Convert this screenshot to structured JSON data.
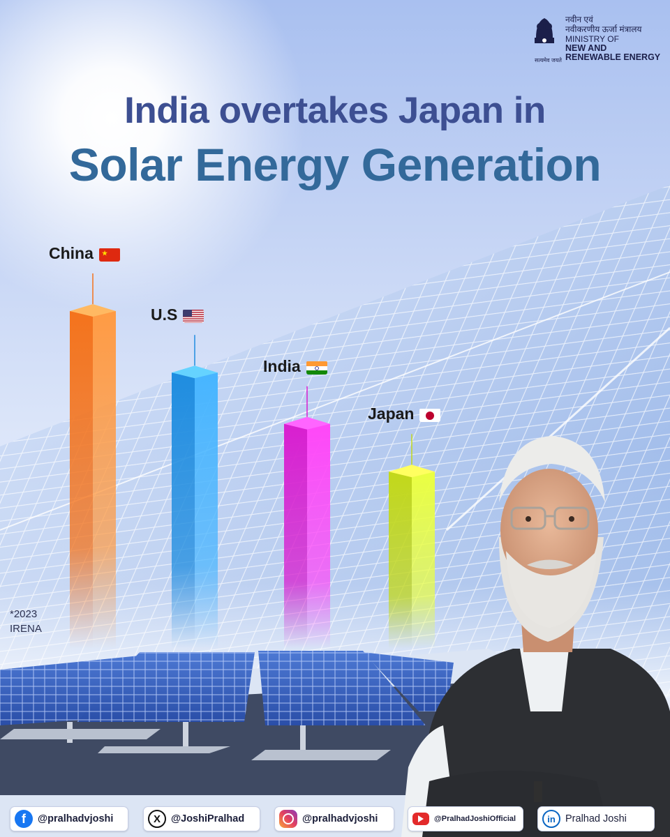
{
  "ministry": {
    "hindi_line1": "नवीन एवं",
    "hindi_line2": "नवीकरणीय ऊर्जा मंत्रालय",
    "english_line1": "MINISTRY OF",
    "english_line2": "NEW AND",
    "english_line3": "RENEWABLE ENERGY",
    "emblem_motto": "सत्यमेव जयते",
    "emblem_icon": "ashoka-emblem-icon"
  },
  "title": {
    "line1": "India overtakes Japan in",
    "line2": "Solar Energy Generation"
  },
  "note": {
    "year": "*2023",
    "source": "IRENA"
  },
  "chart_data": {
    "type": "bar",
    "categories": [
      "China",
      "U.S",
      "India",
      "Japan"
    ],
    "values": [
      100,
      82,
      67,
      53
    ],
    "value_basis": "relative bar height, no numeric axis shown",
    "bar_colors": [
      "#f4731c",
      "#1f8de0",
      "#d81fd0",
      "#c2d81a"
    ],
    "flags": [
      "china-flag-icon",
      "us-flag-icon",
      "india-flag-icon",
      "japan-flag-icon"
    ],
    "ylim": [
      0,
      100
    ],
    "grid": false
  },
  "footer": {
    "facebook": "@pralhadvjoshi",
    "x": "@JoshiPralhad",
    "instagram": "@pralhadvjoshi",
    "youtube": "@PralhadJoshiOfficial",
    "linkedin": "Pralhad Joshi"
  },
  "colors": {
    "title_dark": "#3d4f92",
    "title_accent": "#33699a",
    "sky_top": "#a9c0f0"
  }
}
